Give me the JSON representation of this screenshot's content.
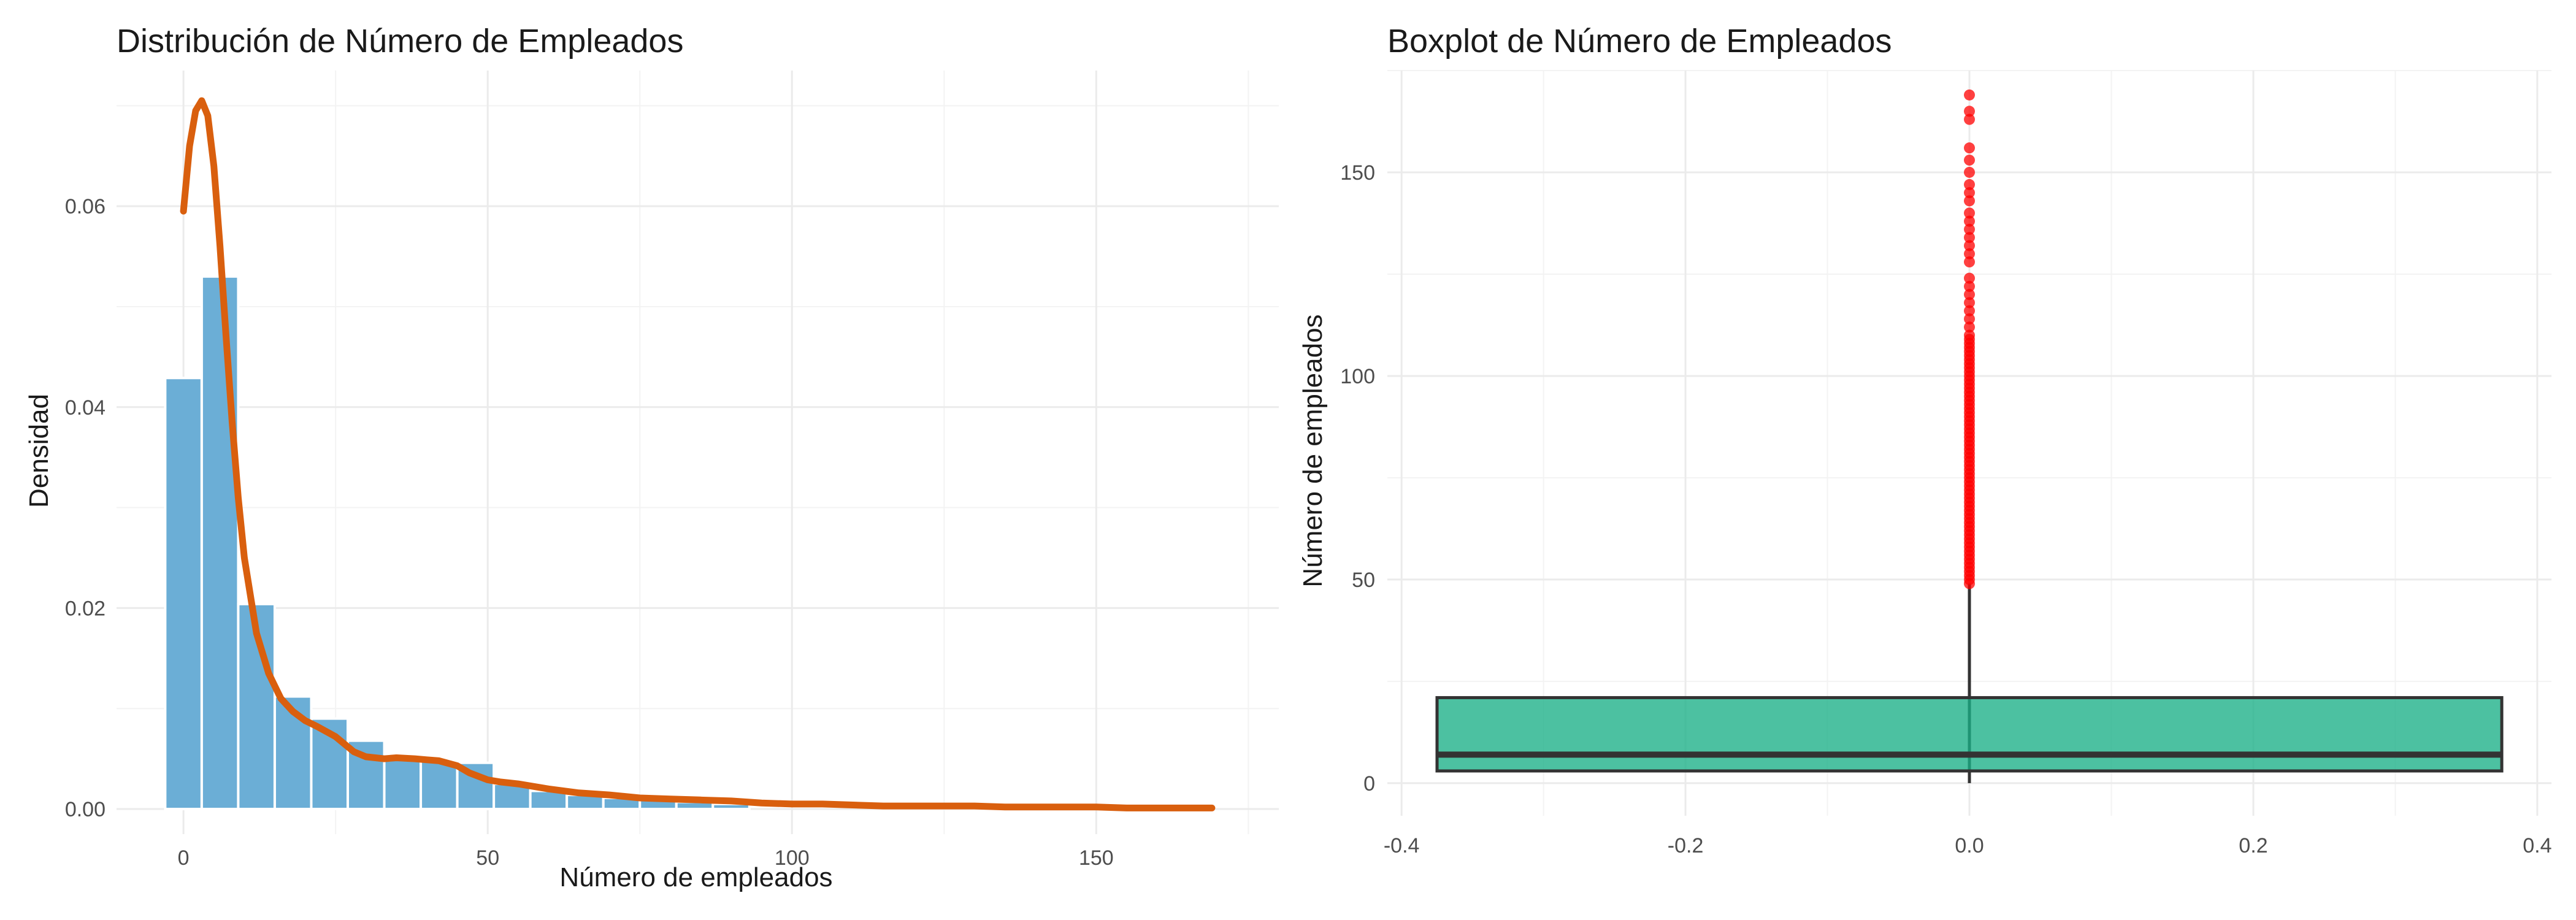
{
  "chart_data": [
    {
      "type": "bar",
      "subtype": "histogram-with-density",
      "title": "Distribución de Número de Empleados",
      "xlabel": "Número de empleados",
      "ylabel": "Densidad",
      "xlim": [
        -11,
        180
      ],
      "ylim": [
        -0.0025,
        0.0735
      ],
      "xticks": [
        0,
        50,
        100,
        150
      ],
      "yticks": [
        0.0,
        0.02,
        0.04,
        0.06
      ],
      "ytick_labels": [
        "0.00",
        "0.02",
        "0.04",
        "0.06"
      ],
      "bin_width": 6,
      "bins": [
        {
          "x0": -3,
          "x1": 3,
          "density": 0.0429
        },
        {
          "x0": 3,
          "x1": 9,
          "density": 0.053
        },
        {
          "x0": 9,
          "x1": 15,
          "density": 0.0204
        },
        {
          "x0": 15,
          "x1": 21,
          "density": 0.0112
        },
        {
          "x0": 21,
          "x1": 27,
          "density": 0.009
        },
        {
          "x0": 27,
          "x1": 33,
          "density": 0.0068
        },
        {
          "x0": 33,
          "x1": 39,
          "density": 0.005
        },
        {
          "x0": 39,
          "x1": 45,
          "density": 0.0048
        },
        {
          "x0": 45,
          "x1": 51,
          "density": 0.0046
        },
        {
          "x0": 51,
          "x1": 57,
          "density": 0.0025
        },
        {
          "x0": 57,
          "x1": 63,
          "density": 0.0018
        },
        {
          "x0": 63,
          "x1": 69,
          "density": 0.0014
        },
        {
          "x0": 69,
          "x1": 75,
          "density": 0.0011
        },
        {
          "x0": 75,
          "x1": 81,
          "density": 0.0009
        },
        {
          "x0": 81,
          "x1": 87,
          "density": 0.0007
        },
        {
          "x0": 87,
          "x1": 93,
          "density": 0.0005
        }
      ],
      "density_curve": {
        "x": [
          0,
          1,
          2,
          3,
          4,
          5,
          6,
          7,
          8,
          9,
          10,
          12,
          14,
          16,
          18,
          20,
          22,
          25,
          28,
          30,
          33,
          35,
          38,
          40,
          42,
          45,
          47,
          50,
          52,
          55,
          60,
          65,
          70,
          75,
          80,
          85,
          90,
          95,
          100,
          105,
          110,
          115,
          120,
          125,
          130,
          135,
          140,
          145,
          150,
          155,
          160,
          165,
          169
        ],
        "y": [
          0.0595,
          0.066,
          0.0695,
          0.0705,
          0.069,
          0.064,
          0.056,
          0.047,
          0.0385,
          0.031,
          0.025,
          0.0175,
          0.0135,
          0.011,
          0.0097,
          0.0088,
          0.0082,
          0.0072,
          0.0057,
          0.0052,
          0.005,
          0.0051,
          0.005,
          0.0049,
          0.0048,
          0.0043,
          0.0036,
          0.0029,
          0.0027,
          0.0025,
          0.002,
          0.0016,
          0.0014,
          0.0011,
          0.001,
          0.0009,
          0.0008,
          0.0006,
          0.0005,
          0.0005,
          0.0004,
          0.0003,
          0.0003,
          0.0003,
          0.0003,
          0.0002,
          0.0002,
          0.0002,
          0.0002,
          0.0001,
          0.0001,
          0.0001,
          0.0001
        ]
      },
      "colors": {
        "bars": "#6baed6",
        "bar_stroke": "#ffffff",
        "curve": "#d95f0e"
      },
      "grid": true
    },
    {
      "type": "boxplot",
      "title": "Boxplot de Número de Empleados",
      "xlabel": "",
      "ylabel": "Número de empleados",
      "xlim": [
        -0.41,
        0.41
      ],
      "ylim": [
        -8,
        175
      ],
      "xticks": [
        -0.4,
        -0.2,
        0.0,
        0.2,
        0.4
      ],
      "xtick_labels": [
        "-0.4",
        "-0.2",
        "0.0",
        "0.2",
        "0.4"
      ],
      "yticks": [
        0,
        50,
        100,
        150
      ],
      "box": {
        "x_center": 0,
        "half_width": 0.375,
        "q1": 3,
        "median": 7,
        "q3": 21,
        "whisker_low": 0,
        "whisker_high": 49
      },
      "outliers": [
        49,
        50,
        51,
        52,
        53,
        54,
        55,
        56,
        57,
        58,
        59,
        60,
        61,
        62,
        63,
        64,
        65,
        66,
        67,
        68,
        69,
        70,
        71,
        72,
        73,
        74,
        75,
        76,
        77,
        78,
        79,
        80,
        81,
        82,
        83,
        84,
        85,
        86,
        87,
        88,
        89,
        90,
        91,
        92,
        93,
        94,
        95,
        96,
        97,
        98,
        99,
        100,
        101,
        102,
        103,
        104,
        105,
        106,
        107,
        108,
        109,
        110,
        112,
        114,
        116,
        118,
        120,
        122,
        124,
        128,
        130,
        132,
        134,
        136,
        138,
        140,
        143,
        145,
        147,
        150,
        153,
        156,
        163,
        165,
        169
      ],
      "colors": {
        "box_fill": "#1aaf87",
        "box_stroke": "#333333",
        "outliers": "#ff0000"
      },
      "grid": true
    }
  ]
}
